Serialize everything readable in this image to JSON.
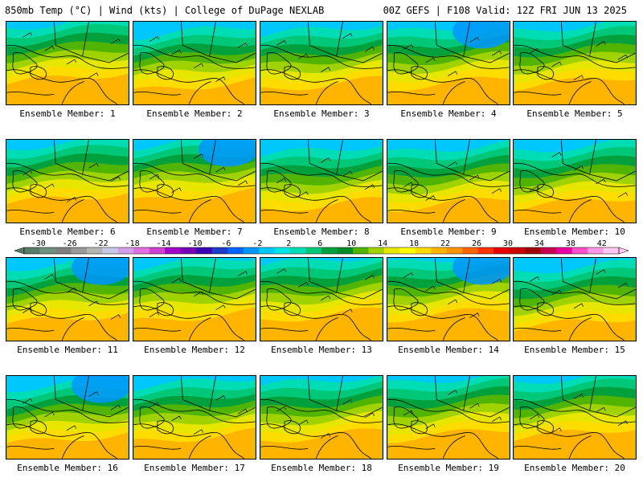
{
  "header": {
    "left_title": "850mb Temp (°C) | Wind (kts) | College of DuPage NEXLAB",
    "right_title": "00Z GEFS | F108 Valid: 12Z FRI JUN 13 2025"
  },
  "members": [
    {
      "label": "Ensemble Member: 1"
    },
    {
      "label": "Ensemble Member: 2"
    },
    {
      "label": "Ensemble Member: 3"
    },
    {
      "label": "Ensemble Member: 4"
    },
    {
      "label": "Ensemble Member: 5"
    },
    {
      "label": "Ensemble Member: 6"
    },
    {
      "label": "Ensemble Member: 7"
    },
    {
      "label": "Ensemble Member: 8"
    },
    {
      "label": "Ensemble Member: 9"
    },
    {
      "label": "Ensemble Member: 10"
    },
    {
      "label": "Ensemble Member: 11"
    },
    {
      "label": "Ensemble Member: 12"
    },
    {
      "label": "Ensemble Member: 13"
    },
    {
      "label": "Ensemble Member: 14"
    },
    {
      "label": "Ensemble Member: 15"
    },
    {
      "label": "Ensemble Member: 16"
    },
    {
      "label": "Ensemble Member: 17"
    },
    {
      "label": "Ensemble Member: 18"
    },
    {
      "label": "Ensemble Member: 19"
    },
    {
      "label": "Ensemble Member: 20"
    }
  ],
  "colorbar": {
    "ticks": [
      "-30",
      "-26",
      "-22",
      "-18",
      "-14",
      "-10",
      "-6",
      "-2",
      "2",
      "6",
      "10",
      "14",
      "18",
      "22",
      "26",
      "30",
      "34",
      "38",
      "42"
    ],
    "colors": [
      "#5a7a6a",
      "#6f8f7f",
      "#7f7f7f",
      "#9a9a9a",
      "#b4b4b4",
      "#c8c8e6",
      "#d2a0e6",
      "#e070e0",
      "#d040d0",
      "#a000c8",
      "#7800b4",
      "#3c00b4",
      "#1e3cc8",
      "#0064ff",
      "#0096ff",
      "#00c8ff",
      "#00e6e6",
      "#00dcb4",
      "#00c878",
      "#00a03c",
      "#008c28",
      "#50b400",
      "#a0d200",
      "#e6e600",
      "#ffff00",
      "#ffdc00",
      "#ffb400",
      "#ff9600",
      "#ff6400",
      "#ff3200",
      "#e60000",
      "#c80000",
      "#a00000",
      "#c80050",
      "#e600a0",
      "#ff50c8",
      "#ff96e6",
      "#ffc8f0"
    ]
  }
}
